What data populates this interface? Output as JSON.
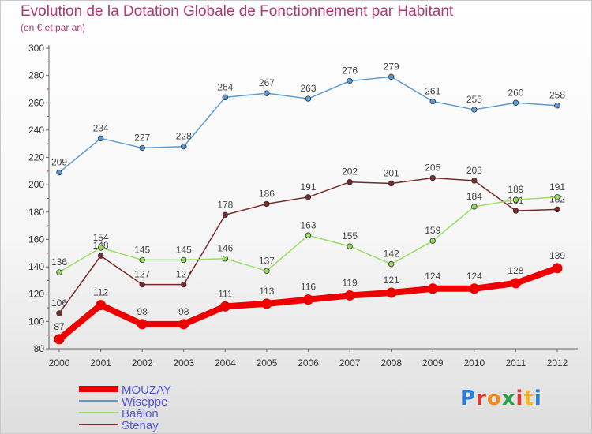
{
  "title": "Evolution de la Dotation Globale de Fonctionnement par Habitant",
  "subtitle": "(en € et par an)",
  "logo": {
    "text": "Proxiti",
    "letter_colors": [
      "#2d7fd6",
      "#e0392b",
      "#f08a1c",
      "#2aa04a",
      "#e0392b",
      "#f0b81c",
      "#2d7fd6"
    ]
  },
  "chart_data": {
    "type": "line",
    "title": "Evolution de la Dotation Globale de Fonctionnement par Habitant",
    "subtitle": "(en € et par an)",
    "xlabel": "",
    "ylabel": "",
    "ylim": [
      80,
      300
    ],
    "yticks": [
      80,
      100,
      120,
      140,
      160,
      180,
      200,
      220,
      240,
      260,
      280,
      300
    ],
    "x": [
      "2000",
      "2001",
      "2002",
      "2003",
      "2004",
      "2005",
      "2006",
      "2007",
      "2008",
      "2009",
      "2010",
      "2011",
      "2012"
    ],
    "grid": false,
    "legend_position": "bottom-left",
    "series": [
      {
        "name": "MOUZAY",
        "color": "#ee0000",
        "values": [
          87,
          112,
          98,
          98,
          111,
          113,
          116,
          119,
          121,
          124,
          124,
          128,
          139
        ]
      },
      {
        "name": "Wiseppe",
        "color": "#5b9bd5",
        "values": [
          209,
          234,
          227,
          228,
          264,
          267,
          263,
          276,
          279,
          261,
          255,
          260,
          258
        ]
      },
      {
        "name": "Baâlon",
        "color": "#99dd66",
        "values": [
          136,
          154,
          145,
          145,
          146,
          137,
          163,
          155,
          142,
          159,
          184,
          189,
          191
        ]
      },
      {
        "name": "Stenay",
        "color": "#7a2a2a",
        "values": [
          106,
          148,
          127,
          127,
          178,
          186,
          191,
          202,
          201,
          205,
          203,
          181,
          182
        ]
      }
    ]
  }
}
